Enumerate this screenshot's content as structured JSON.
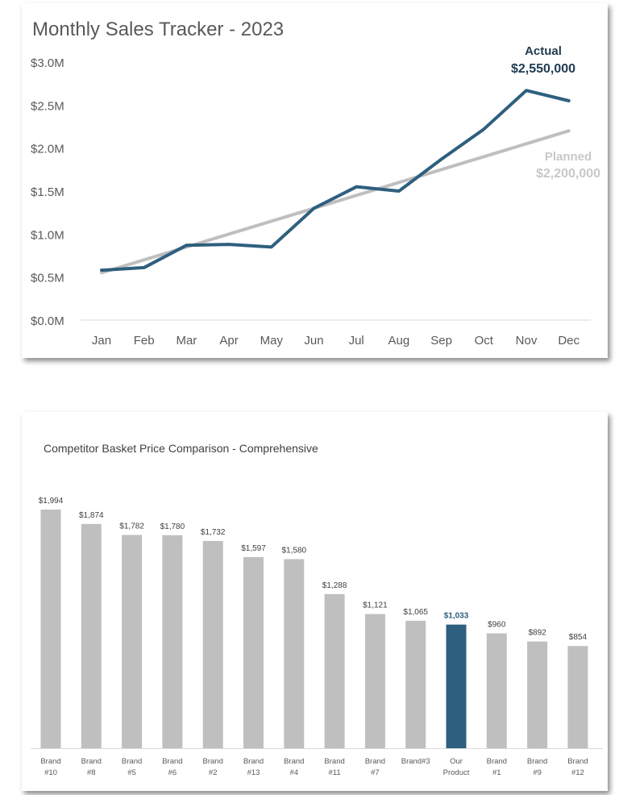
{
  "chart_data": [
    {
      "type": "line",
      "title": "Monthly Sales Tracker - 2023",
      "categories": [
        "Jan",
        "Feb",
        "Mar",
        "Apr",
        "May",
        "Jun",
        "Jul",
        "Aug",
        "Sep",
        "Oct",
        "Nov",
        "Dec"
      ],
      "ylim": [
        0,
        3000000
      ],
      "yticks": [
        "$0.0M",
        "$0.5M",
        "$1.0M",
        "$1.5M",
        "$2.0M",
        "$2.5M",
        "$3.0M"
      ],
      "grid": false,
      "series": [
        {
          "name": "Actual",
          "color": "#2E5F7E",
          "values": [
            580000,
            610000,
            870000,
            880000,
            850000,
            1300000,
            1550000,
            1500000,
            1870000,
            2220000,
            2670000,
            2550000
          ],
          "end_label": "$2,550,000"
        },
        {
          "name": "Planned",
          "color": "#BFBFBF",
          "values": [
            550000,
            700000,
            850000,
            1000000,
            1150000,
            1300000,
            1450000,
            1600000,
            1750000,
            1900000,
            2050000,
            2200000
          ],
          "end_label": "$2,200,000"
        }
      ]
    },
    {
      "type": "bar",
      "title": "Competitor Basket Price Comparison - Comprehensive",
      "categories": [
        [
          "Brand",
          "#10"
        ],
        [
          "Brand",
          "#8"
        ],
        [
          "Brand",
          "#5"
        ],
        [
          "Brand",
          "#6"
        ],
        [
          "Brand",
          "#2"
        ],
        [
          "Brand",
          "#13"
        ],
        [
          "Brand",
          "#4"
        ],
        [
          "Brand",
          "#11"
        ],
        [
          "Brand",
          "#7"
        ],
        [
          "Brand#3"
        ],
        [
          "Our",
          "Product"
        ],
        [
          "Brand",
          "#1"
        ],
        [
          "Brand",
          "#9"
        ],
        [
          "Brand",
          "#12"
        ]
      ],
      "values": [
        1994,
        1874,
        1782,
        1780,
        1732,
        1597,
        1580,
        1288,
        1121,
        1065,
        1033,
        960,
        892,
        854
      ],
      "labels": [
        "$1,994",
        "$1,874",
        "$1,782",
        "$1,780",
        "$1,732",
        "$1,597",
        "$1,580",
        "$1,288",
        "$1,121",
        "$1,065",
        "$1,033",
        "$960",
        "$892",
        "$854"
      ],
      "highlight_index": 10,
      "colors": {
        "default": "#BFBFBF",
        "highlight": "#2E5F7E"
      },
      "grid": false
    }
  ]
}
